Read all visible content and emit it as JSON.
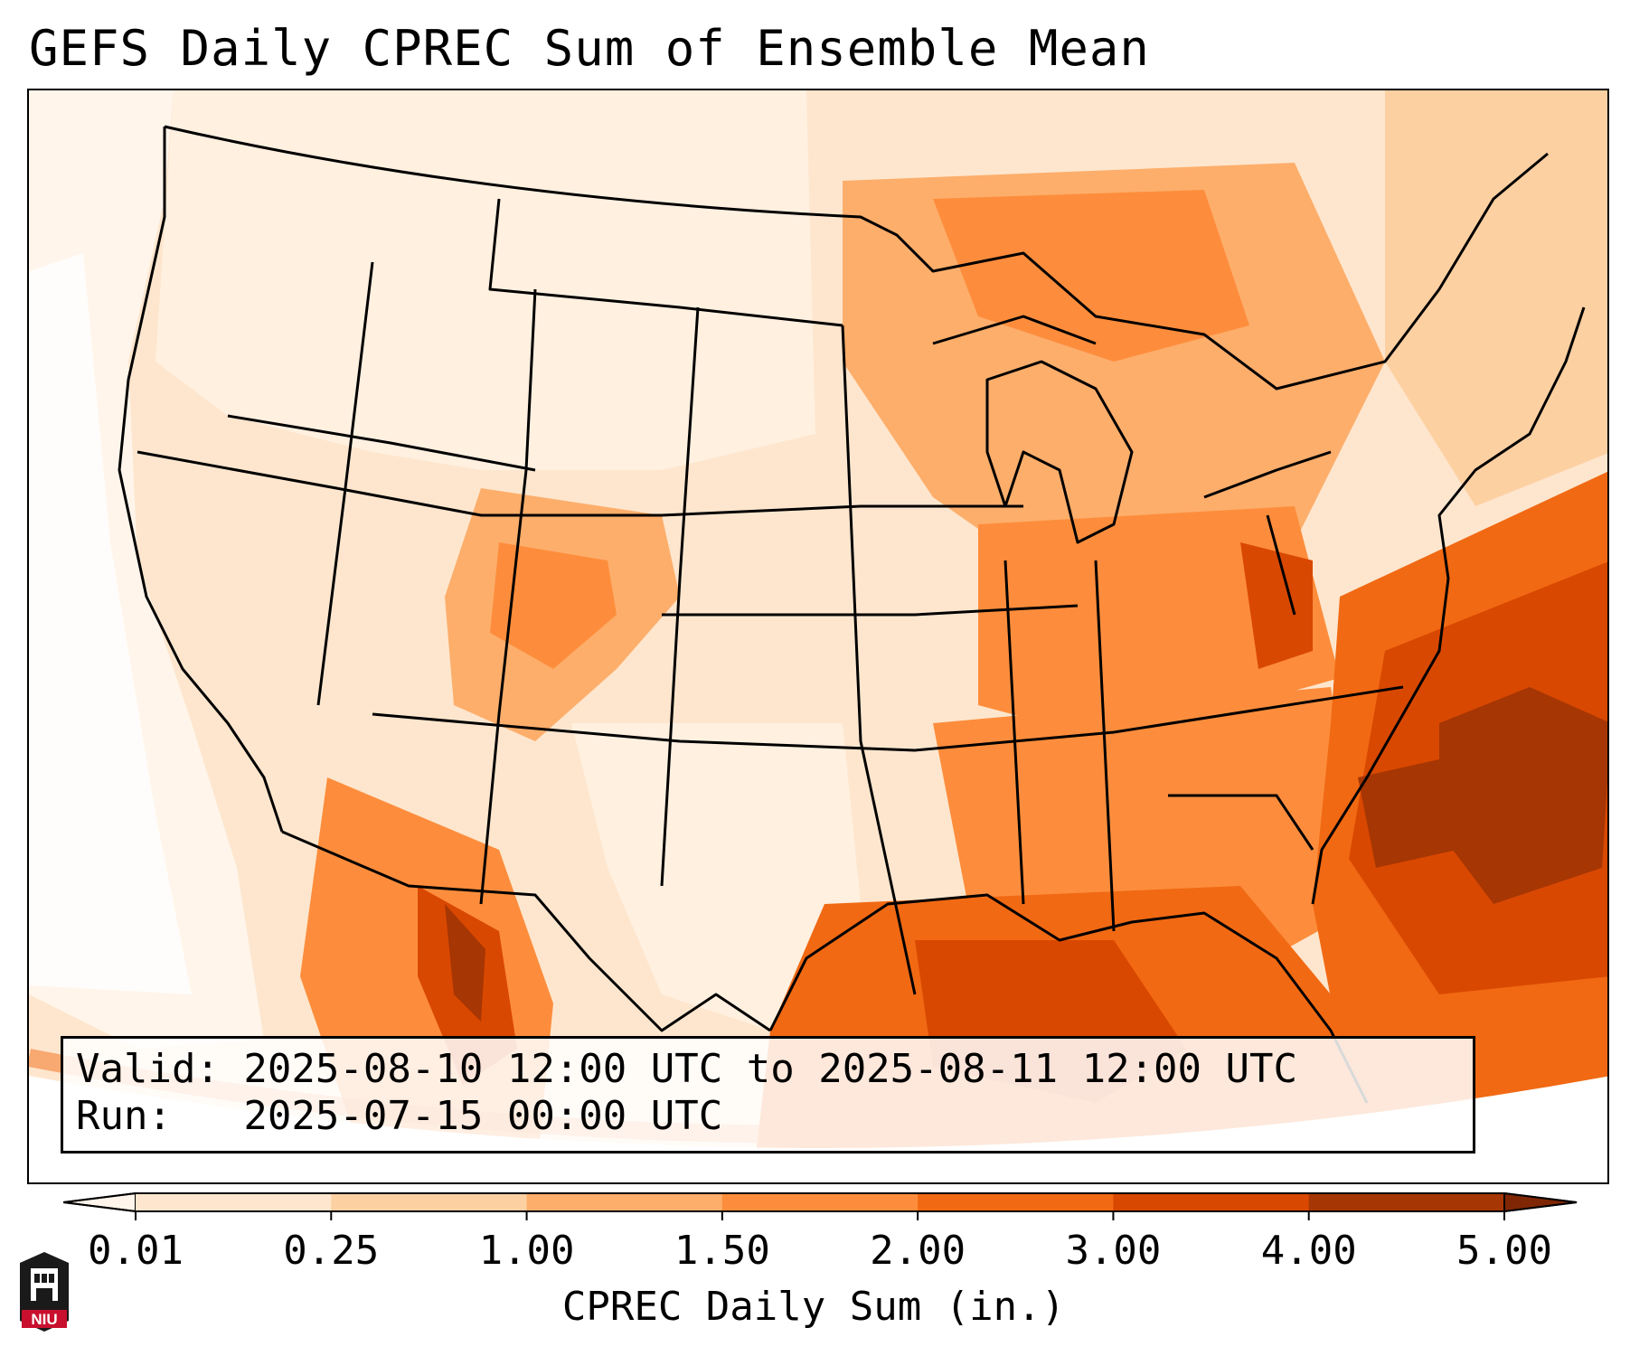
{
  "title": "GEFS Daily CPREC Sum of Ensemble Mean",
  "info": {
    "valid": "Valid: 2025-08-10 12:00 UTC to 2025-08-11 12:00 UTC",
    "run": "Run:   2025-07-15 00:00 UTC"
  },
  "colorbar": {
    "label": "CPREC Daily Sum (in.)",
    "ticks": [
      "0.01",
      "0.25",
      "1.00",
      "1.50",
      "2.00",
      "3.00",
      "4.00",
      "5.00"
    ],
    "colors": [
      "#fff5eb",
      "#fee6ce",
      "#fdd0a2",
      "#fdae6b",
      "#fd8d3c",
      "#f16913",
      "#d94801",
      "#a63603",
      "#7f2704"
    ]
  },
  "logo": {
    "text": "NIU",
    "icon": "niu-logo-icon"
  },
  "regions": [
    {
      "name": "pacific-ocean-west",
      "level": 0
    },
    {
      "name": "northern-plains",
      "level": 1
    },
    {
      "name": "southern-rockies",
      "level": 3
    },
    {
      "name": "sierra-madre-mexico",
      "level": 5
    },
    {
      "name": "great-lakes",
      "level": 3
    },
    {
      "name": "ohio-valley",
      "level": 4
    },
    {
      "name": "southeast-us",
      "level": 4
    },
    {
      "name": "gulf-of-mexico",
      "level": 6
    },
    {
      "name": "western-atlantic",
      "level": 7
    },
    {
      "name": "appalachians-core",
      "level": 7
    }
  ]
}
